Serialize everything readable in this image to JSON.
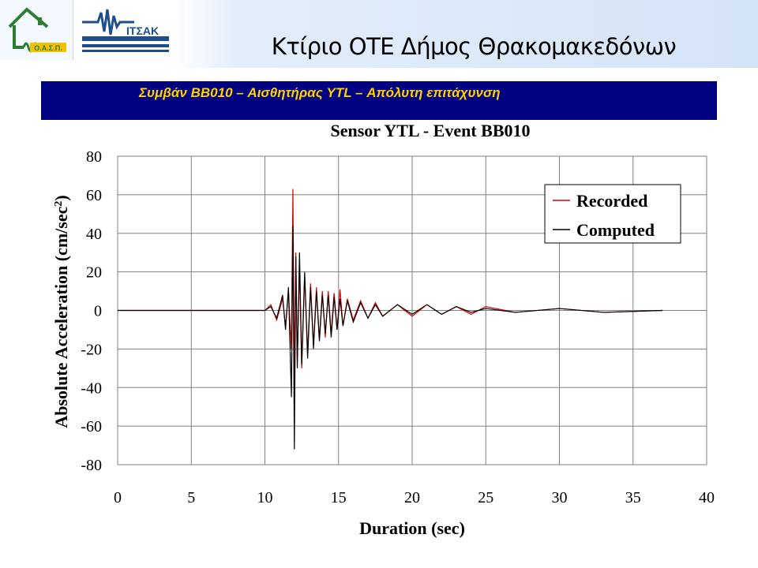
{
  "header": {
    "title": "Κτίριο ΟΤΕ Δήμος Θρακομακεδόνων",
    "logo_left_text": "Ο.Α.Σ.Π.",
    "logo_right_text": "ΙΤΣΑΚ"
  },
  "banner": {
    "text": "Συμβάν BB010 – Αισθητήρας YTL – Απόλυτη επιτάχυνση",
    "background_color": "#000080",
    "text_color": "#ffd200"
  },
  "chart_data": {
    "type": "line",
    "title": "Sensor YTL - Event BB010",
    "xlabel": "Duration (sec)",
    "ylabel": "Absolute Acceleration (cm/sec²)",
    "xlim": [
      0,
      40
    ],
    "ylim": [
      -80,
      80
    ],
    "x_ticks": [
      0,
      5,
      10,
      15,
      20,
      25,
      30,
      35,
      40
    ],
    "y_ticks": [
      80,
      60,
      40,
      20,
      0,
      -20,
      -40,
      -60,
      -80
    ],
    "x_tick_labels": [
      "0",
      "5",
      "10",
      "15",
      "20",
      "25",
      "30",
      "35",
      "40"
    ],
    "y_tick_labels": [
      "80",
      "60",
      "40",
      "20",
      "0",
      "-20",
      "-40",
      "-60",
      "-80"
    ],
    "grid": true,
    "legend_position": "top-right",
    "series": [
      {
        "name": "Recorded",
        "color": "#e00000",
        "x": [
          0,
          10.0,
          10.4,
          10.8,
          11.2,
          11.4,
          11.6,
          11.8,
          11.9,
          12.0,
          12.1,
          12.2,
          12.35,
          12.5,
          12.7,
          12.9,
          13.1,
          13.3,
          13.5,
          13.7,
          13.9,
          14.1,
          14.3,
          14.5,
          14.7,
          14.9,
          15.1,
          15.3,
          15.6,
          16.0,
          16.5,
          17.0,
          17.5,
          18.0,
          19.0,
          20.0,
          21.0,
          22.0,
          23.0,
          24.0,
          25.0,
          27.0,
          30.0,
          33.0,
          37.0
        ],
        "values": [
          0,
          0,
          3,
          -5,
          6,
          -8,
          10,
          -20,
          63,
          -35,
          30,
          -25,
          22,
          -30,
          18,
          -22,
          14,
          -18,
          12,
          -15,
          10,
          -14,
          10,
          -12,
          9,
          -10,
          11,
          -8,
          6,
          -5,
          5,
          -4,
          4,
          -3,
          3,
          -3,
          3,
          -2,
          2,
          -2,
          2,
          -1,
          1,
          -1,
          0
        ]
      },
      {
        "name": "Computed",
        "color": "#000000",
        "x": [
          0,
          10.0,
          10.4,
          10.8,
          11.2,
          11.4,
          11.6,
          11.8,
          11.9,
          12.0,
          12.1,
          12.2,
          12.35,
          12.5,
          12.7,
          12.9,
          13.1,
          13.3,
          13.5,
          13.7,
          13.9,
          14.1,
          14.3,
          14.5,
          14.7,
          14.9,
          15.1,
          15.3,
          15.6,
          16.0,
          16.5,
          17.0,
          17.5,
          18.0,
          19.0,
          20.0,
          21.0,
          22.0,
          23.0,
          24.0,
          25.0,
          27.0,
          30.0,
          33.0,
          37.0
        ],
        "values": [
          0,
          0,
          2,
          -4,
          8,
          -10,
          12,
          -45,
          44,
          -72,
          28,
          -30,
          30,
          -28,
          20,
          -25,
          12,
          -20,
          10,
          -16,
          8,
          -12,
          8,
          -14,
          7,
          -10,
          6,
          -8,
          5,
          -6,
          4,
          -4,
          3,
          -3,
          3,
          -2,
          3,
          -2,
          2,
          -1,
          1,
          -1,
          1,
          -1,
          0
        ]
      }
    ]
  }
}
